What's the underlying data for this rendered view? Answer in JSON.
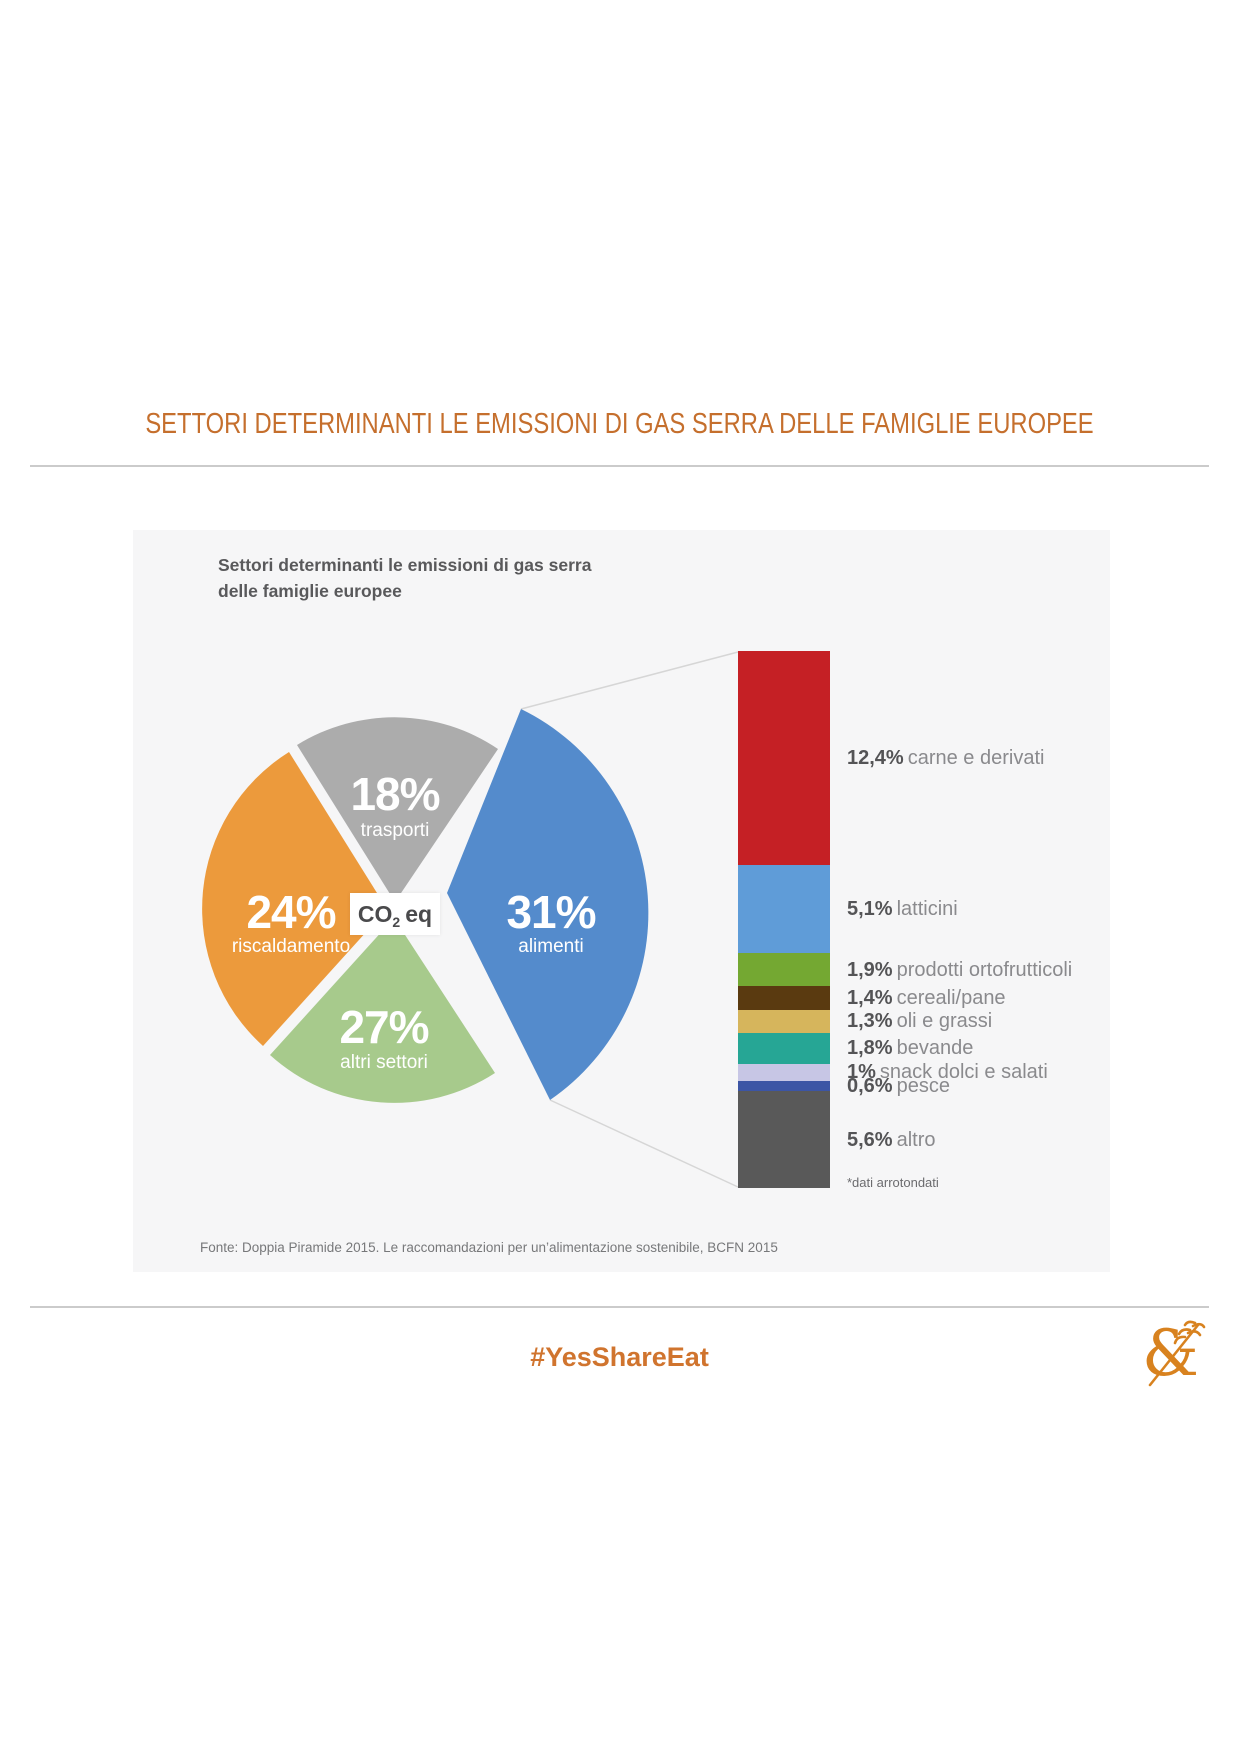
{
  "page": {
    "title": "SETTORI DETERMINANTI LE EMISSIONI DI GAS SERRA DELLE FAMIGLIE EUROPEE",
    "hashtag": "#YesShareEat",
    "logo_glyph": "&",
    "accent_color": "#c56f2d"
  },
  "panel": {
    "title_line1": "Settori determinanti le emissioni di gas serra",
    "title_line2": "delle famiglie europee",
    "source": "Fonte: Doppia Piramide 2015. Le raccomandazioni per un’alimentazione sostenibile, BCFN 2015",
    "footnote": "*dati arrotondati"
  },
  "center_label": {
    "prefix": "CO",
    "sub": "2",
    "suffix": "eq"
  },
  "chart_data": {
    "type": "pie",
    "title": "Settori determinanti le emissioni di gas serra delle famiglie europee",
    "unit": "CO2 eq",
    "slices": [
      {
        "label": "alimenti",
        "pct_label": "31%",
        "value": 31,
        "color": "#548bcc",
        "exploded": true
      },
      {
        "label": "trasporti",
        "pct_label": "18%",
        "value": 18,
        "color": "#acacac",
        "exploded": false
      },
      {
        "label": "riscaldamento",
        "pct_label": "24%",
        "value": 24,
        "color": "#ec9a3c",
        "exploded": false
      },
      {
        "label": "altri settori",
        "pct_label": "27%",
        "value": 27,
        "color": "#a7ca8c",
        "exploded": false
      }
    ],
    "food_breakdown": {
      "type": "stacked-bar",
      "parent_slice": "alimenti",
      "segments": [
        {
          "pct_label": "12,4%",
          "label": "carne e derivati",
          "value": 12.4,
          "color": "#c52025"
        },
        {
          "pct_label": "5,1%",
          "label": "latticini",
          "value": 5.1,
          "color": "#5f9cd8"
        },
        {
          "pct_label": "1,9%",
          "label": "prodotti ortofrutticoli",
          "value": 1.9,
          "color": "#74a832"
        },
        {
          "pct_label": "1,4%",
          "label": "cereali/pane",
          "value": 1.4,
          "color": "#5a3a10"
        },
        {
          "pct_label": "1,3%",
          "label": "oli e grassi",
          "value": 1.3,
          "color": "#d6b55c"
        },
        {
          "pct_label": "1,8%",
          "label": "bevande",
          "value": 1.8,
          "color": "#26a695"
        },
        {
          "pct_label": "1%",
          "label": "snack dolci e salati",
          "value": 1.0,
          "color": "#c7c6e5"
        },
        {
          "pct_label": "0,6%",
          "label": "pesce",
          "value": 0.6,
          "color": "#3c55a5"
        },
        {
          "pct_label": "5,6%",
          "label": "altro",
          "value": 5.6,
          "color": "#595959"
        }
      ]
    }
  }
}
